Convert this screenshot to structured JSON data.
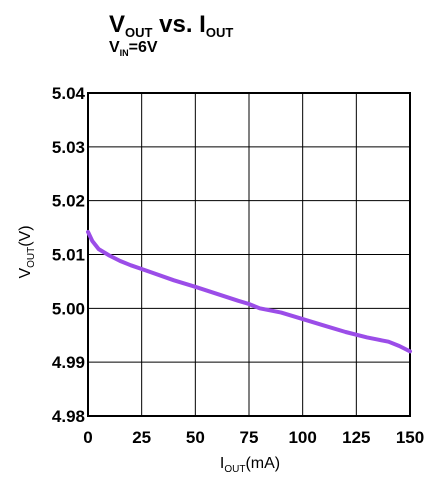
{
  "chart_data": {
    "type": "line",
    "title": {
      "main": "V",
      "sub": "OUT",
      "middle": " vs. I",
      "sub2": "OUT"
    },
    "subtitle": {
      "main": "V",
      "sub": "IN",
      "rest": "=6V"
    },
    "xlabel": {
      "main": "I",
      "sub": "OUT",
      "rest": "(mA)"
    },
    "ylabel": {
      "main": "V",
      "sub": "OUT",
      "rest": "(V)"
    },
    "x_ticks": [
      "0",
      "25",
      "50",
      "75",
      "100",
      "125",
      "150"
    ],
    "y_ticks": [
      "5.04",
      "5.03",
      "5.02",
      "5.01",
      "5.00",
      "4.99",
      "4.98"
    ],
    "xlim": [
      0,
      150
    ],
    "ylim": [
      4.98,
      5.04
    ],
    "grid": true,
    "series_color": "#9b4de8",
    "series": [
      {
        "x": [
          0,
          2,
          5,
          10,
          15,
          20,
          25,
          30,
          40,
          50,
          60,
          70,
          75,
          80,
          90,
          100,
          110,
          120,
          130,
          135,
          140,
          145,
          150
        ],
        "y": [
          5.0142,
          5.0125,
          5.011,
          5.0098,
          5.0088,
          5.008,
          5.0073,
          5.0066,
          5.0052,
          5.004,
          5.0027,
          5.0014,
          5.0008,
          5.0,
          4.9992,
          4.998,
          4.9968,
          4.9956,
          4.9946,
          4.9942,
          4.9938,
          4.993,
          4.992
        ]
      }
    ]
  }
}
